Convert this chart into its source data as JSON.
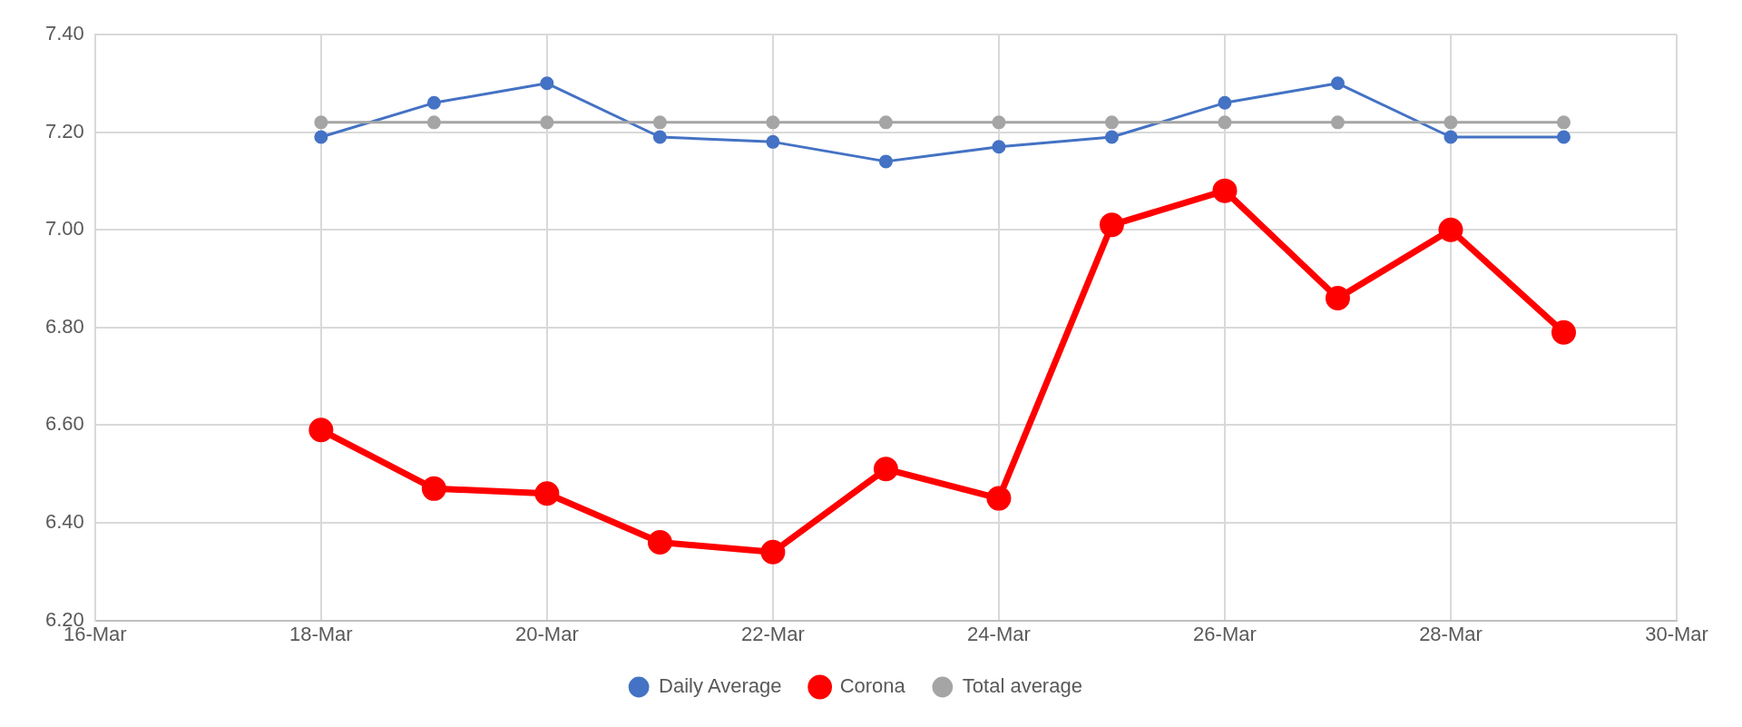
{
  "chart_data": {
    "type": "line",
    "x": [
      "--03-18",
      "--03-19",
      "--03-20",
      "--03-21",
      "--03-22",
      "--03-23",
      "--03-24",
      "--03-25",
      "--03-26",
      "--03-27",
      "--03-28",
      "--03-29"
    ],
    "series": [
      {
        "name": "Daily Average",
        "color": "#4472c4",
        "values": [
          7.19,
          7.26,
          7.3,
          7.19,
          7.18,
          7.14,
          7.17,
          7.19,
          7.26,
          7.3,
          7.19,
          7.19
        ]
      },
      {
        "name": "Corona",
        "color": "#ff0000",
        "values": [
          6.59,
          6.47,
          6.46,
          6.36,
          6.34,
          6.51,
          6.45,
          7.01,
          7.08,
          6.86,
          7.0,
          6.79
        ]
      },
      {
        "name": "Total average",
        "color": "#a5a5a5",
        "values": [
          7.22,
          7.22,
          7.22,
          7.22,
          7.22,
          7.22,
          7.22,
          7.22,
          7.22,
          7.22,
          7.22,
          7.22
        ]
      }
    ],
    "xlim": [
      "--03-16",
      "--03-30"
    ],
    "xticks": [
      {
        "value": "--03-16",
        "label": "16-Mar"
      },
      {
        "value": "--03-18",
        "label": "18-Mar"
      },
      {
        "value": "--03-20",
        "label": "20-Mar"
      },
      {
        "value": "--03-22",
        "label": "22-Mar"
      },
      {
        "value": "--03-24",
        "label": "24-Mar"
      },
      {
        "value": "--03-26",
        "label": "26-Mar"
      },
      {
        "value": "--03-28",
        "label": "28-Mar"
      },
      {
        "value": "--03-30",
        "label": "30-Mar"
      }
    ],
    "ylim": [
      6.2,
      7.4
    ],
    "yticks": [
      {
        "value": 6.2,
        "label": "6.20"
      },
      {
        "value": 6.4,
        "label": "6.40"
      },
      {
        "value": 6.6,
        "label": "6.60"
      },
      {
        "value": 6.8,
        "label": "6.80"
      },
      {
        "value": 7.0,
        "label": "7.00"
      },
      {
        "value": 7.2,
        "label": "7.20"
      },
      {
        "value": 7.4,
        "label": "7.40"
      }
    ],
    "grid": true,
    "legend": "bottom",
    "marker": "circle",
    "line_style": "solid"
  }
}
